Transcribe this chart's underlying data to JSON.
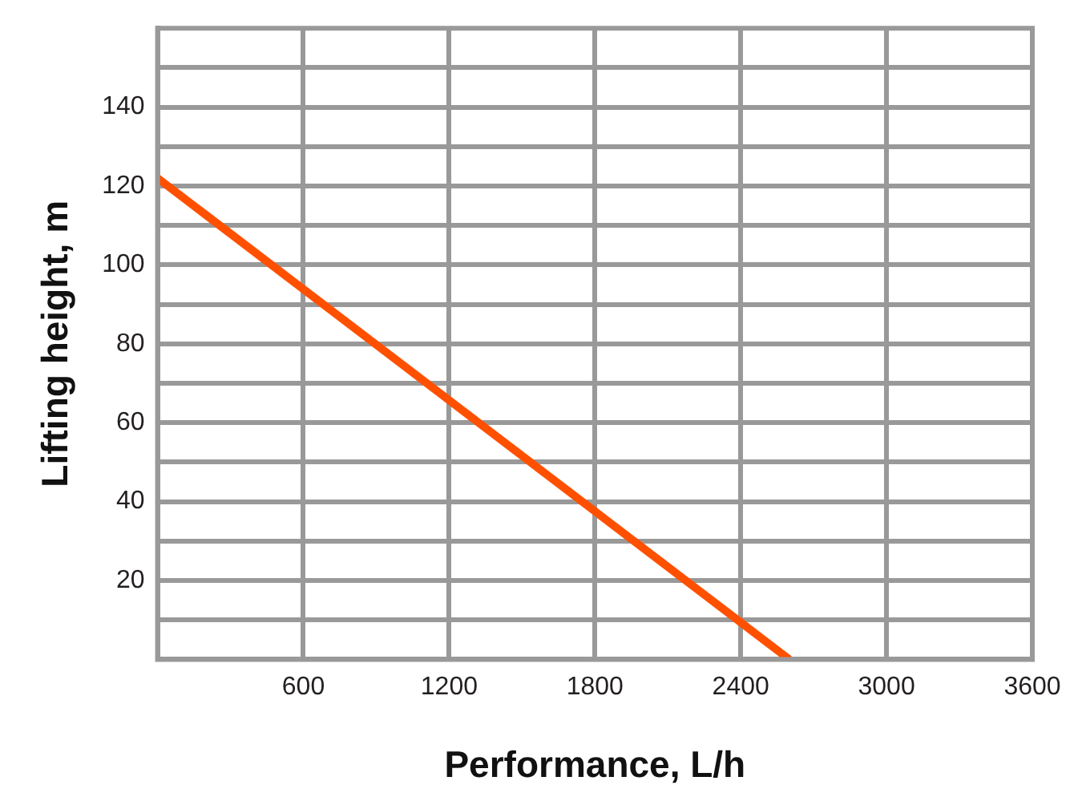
{
  "chart_data": {
    "type": "line",
    "xlabel": "Performance, L/h",
    "ylabel": "Lifting height, m",
    "x": [
      0,
      2600
    ],
    "series": [
      {
        "color": "#ff5000",
        "values": [
          122,
          0
        ]
      }
    ],
    "xlim": [
      0,
      3600
    ],
    "xticks": [
      600,
      1200,
      1800,
      2400,
      3000,
      3600
    ],
    "ylim": [
      0,
      160
    ],
    "yticks": [
      {
        "value": 10,
        "label": null
      },
      20,
      {
        "value": 30,
        "label": null
      },
      40,
      {
        "value": 50,
        "label": null
      },
      60,
      {
        "value": 70,
        "label": null
      },
      80,
      {
        "value": 90,
        "label": null
      },
      100,
      {
        "value": 110,
        "label": null
      },
      120,
      {
        "value": 130,
        "label": null
      },
      140,
      {
        "value": 150,
        "label": null
      }
    ],
    "grid": true,
    "legend": false,
    "marker": "none",
    "line_style": "solid"
  }
}
